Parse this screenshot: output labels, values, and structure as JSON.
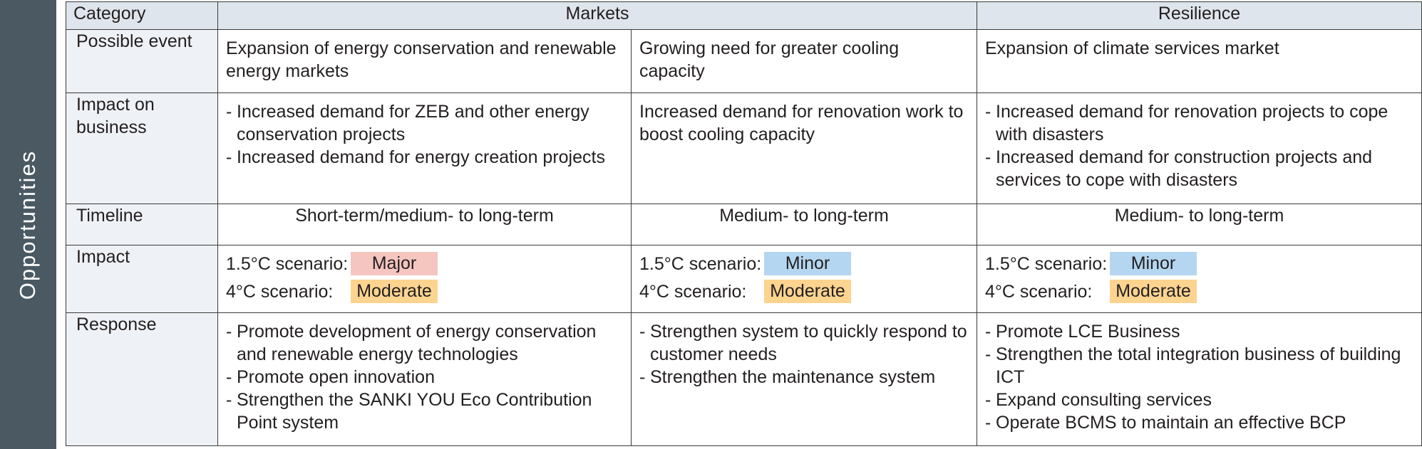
{
  "side_label": "Opportunities",
  "colors": {
    "side_band": "#4b5a62",
    "header_bg": "#dfe5ec",
    "rowhead_bg": "#eef1f5",
    "major": "#f5c5c0",
    "minor": "#b4d6f0",
    "moderate": "#fcd490"
  },
  "header": {
    "category": "Category",
    "markets": "Markets",
    "resilience": "Resilience"
  },
  "rows": {
    "possible_event": {
      "label": "Possible event",
      "c1": "Expansion of energy conservation and renewable energy markets",
      "c2": "Growing need for greater cooling capacity",
      "c3": "Expansion of climate services market"
    },
    "impact_on_business": {
      "label": "Impact on business",
      "c1": [
        "Increased demand for ZEB and other energy conservation projects",
        "Increased demand for energy creation projects"
      ],
      "c2": "Increased demand for renovation work to boost cooling capacity",
      "c3": [
        "Increased demand for renovation projects to cope with disasters",
        "Increased demand for construction projects and services to cope with disasters"
      ]
    },
    "timeline": {
      "label": "Timeline",
      "c1": "Short-term/medium- to long-term",
      "c2": "Medium- to long-term",
      "c3": "Medium- to long-term"
    },
    "impact": {
      "label": "Impact",
      "scenario_15": "1.5°C scenario:",
      "scenario_4": "4°C scenario:",
      "c1": {
        "s15": "Major",
        "s4": "Moderate"
      },
      "c2": {
        "s15": "Minor",
        "s4": "Moderate"
      },
      "c3": {
        "s15": "Minor",
        "s4": "Moderate"
      }
    },
    "response": {
      "label": "Response",
      "c1": [
        "Promote development of energy conservation and renewable energy technologies",
        "Promote open innovation",
        "Strengthen the SANKI YOU Eco Contribution Point system"
      ],
      "c2": [
        "Strengthen system to quickly respond to customer needs",
        "Strengthen the maintenance system"
      ],
      "c3": [
        "Promote LCE Business",
        "Strengthen the total integration business of building ICT",
        "Expand consulting services",
        "Operate BCMS to maintain an effective BCP"
      ]
    }
  }
}
